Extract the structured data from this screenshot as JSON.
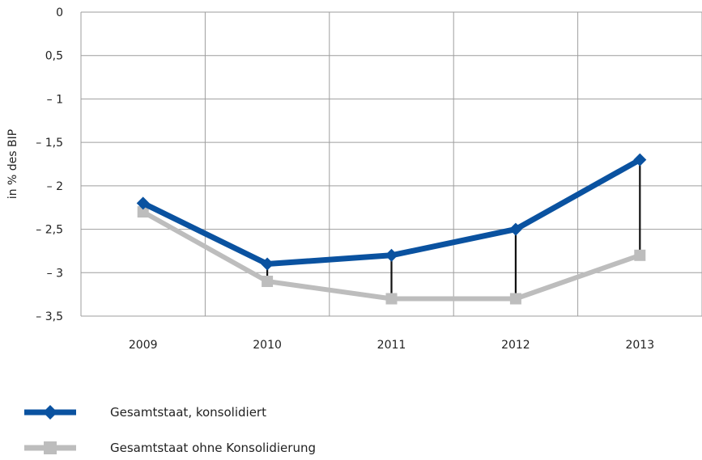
{
  "chart_data": {
    "type": "line",
    "ylabel": "in % des BIP",
    "ylim": [
      -3.5,
      0
    ],
    "y_ticks": [
      {
        "value": 0,
        "label": "0"
      },
      {
        "value": -0.5,
        "label": "0,5"
      },
      {
        "value": -1,
        "label": "– 1"
      },
      {
        "value": -1.5,
        "label": "– 1,5"
      },
      {
        "value": -2,
        "label": "– 2"
      },
      {
        "value": -2.5,
        "label": "– 2,5"
      },
      {
        "value": -3,
        "label": "– 3"
      },
      {
        "value": -3.5,
        "label": "– 3,5"
      }
    ],
    "categories": [
      "2009",
      "2010",
      "2011",
      "2012",
      "2013"
    ],
    "series": [
      {
        "name": "Gesamtstaat, konsolidiert",
        "values": [
          -2.2,
          -2.9,
          -2.8,
          -2.5,
          -1.7
        ],
        "color": "#0a52a0",
        "marker": "diamond"
      },
      {
        "name": "Gesamtstaat ohne Konsolidierung",
        "values": [
          -2.3,
          -3.1,
          -3.3,
          -3.3,
          -2.8
        ],
        "color": "#bdbdbd",
        "marker": "square"
      }
    ],
    "difference_lines": true,
    "grid": true
  },
  "legend": {
    "items": [
      {
        "label": "Gesamtstaat, konsolidiert"
      },
      {
        "label": "Gesamtstaat ohne Konsolidierung"
      }
    ]
  }
}
